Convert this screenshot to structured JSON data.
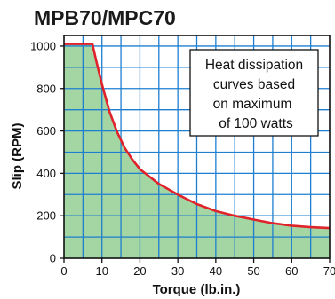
{
  "chart_data": {
    "type": "area",
    "title": "MPB70/MPC70",
    "xlabel": "Torque (lb.in.)",
    "ylabel": "Slip (RPM)",
    "xlim": [
      0,
      70
    ],
    "ylim": [
      0,
      1050
    ],
    "x_ticks": [
      "0",
      "10",
      "20",
      "30",
      "40",
      "50",
      "60",
      "70"
    ],
    "y_ticks": [
      "0",
      "200",
      "400",
      "600",
      "800",
      "1000"
    ],
    "grid": true,
    "annotation": [
      "Heat dissipation",
      "curves based",
      "on maximum",
      "of 100 watts"
    ],
    "colors": {
      "fill": "#a3d6a3",
      "line": "#e0232b",
      "grid": "#1e7fd0",
      "frame": "#111111",
      "annotation_border": "#111111"
    },
    "series": [
      {
        "x": [
          0,
          7,
          7.5,
          8.5,
          10,
          12,
          14,
          16,
          18,
          20,
          25,
          30,
          35,
          40,
          45,
          50,
          55,
          60,
          65,
          70
        ],
        "values": [
          1010,
          1010,
          1010,
          930,
          820,
          690,
          595,
          520,
          465,
          420,
          350,
          300,
          255,
          222,
          200,
          182,
          165,
          153,
          146,
          142
        ]
      }
    ]
  }
}
